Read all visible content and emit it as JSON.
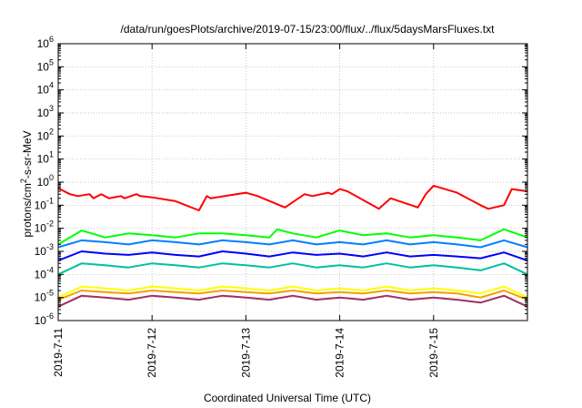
{
  "chart_data": {
    "type": "line",
    "title": "/data/run/goesPlots/archive/2019-07-15/23:00/flux/../flux/5daysMarsFluxes.txt",
    "xlabel": "Coordinated Universal Time (UTC)",
    "ylabel": "protons/cm2-s-sr-MeV",
    "yscale": "log",
    "xlim": [
      "2019-07-11T00:00",
      "2019-07-16T00:00"
    ],
    "ylim": [
      1e-06,
      1000000.0
    ],
    "x_ticks": [
      "2019-7-11",
      "2019-7-12",
      "2019-7-13",
      "2019-7-14",
      "2019-7-15"
    ],
    "y_ticks": [
      {
        "value": 1e-06,
        "base": "10",
        "exp": "-6"
      },
      {
        "value": 1e-05,
        "base": "10",
        "exp": "-5"
      },
      {
        "value": 0.0001,
        "base": "10",
        "exp": "-4"
      },
      {
        "value": 0.001,
        "base": "10",
        "exp": "-3"
      },
      {
        "value": 0.01,
        "base": "10",
        "exp": "-2"
      },
      {
        "value": 0.1,
        "base": "10",
        "exp": "-1"
      },
      {
        "value": 1.0,
        "base": "10",
        "exp": "0"
      },
      {
        "value": 10.0,
        "base": "10",
        "exp": "1"
      },
      {
        "value": 100.0,
        "base": "10",
        "exp": "2"
      },
      {
        "value": 1000.0,
        "base": "10",
        "exp": "3"
      },
      {
        "value": 10000.0,
        "base": "10",
        "exp": "4"
      },
      {
        "value": 100000.0,
        "base": "10",
        "exp": "5"
      },
      {
        "value": 1000000.0,
        "base": "10",
        "exp": "6"
      }
    ],
    "grid": true,
    "series": [
      {
        "color": "#ff0000",
        "x": [
          "2019-07-11T00:00",
          "2019-07-11T03:00",
          "2019-07-11T05:00",
          "2019-07-11T08:00",
          "2019-07-11T09:00",
          "2019-07-11T11:00",
          "2019-07-11T13:00",
          "2019-07-11T16:00",
          "2019-07-11T17:00",
          "2019-07-11T20:00",
          "2019-07-11T21:00",
          "2019-07-12T00:00",
          "2019-07-12T06:00",
          "2019-07-12T12:00",
          "2019-07-12T14:00",
          "2019-07-12T15:00",
          "2019-07-13T00:00",
          "2019-07-13T03:00",
          "2019-07-13T10:00",
          "2019-07-13T15:00",
          "2019-07-13T17:00",
          "2019-07-13T21:00",
          "2019-07-13T22:00",
          "2019-07-14T00:00",
          "2019-07-14T02:00",
          "2019-07-14T10:00",
          "2019-07-14T13:00",
          "2019-07-14T20:00",
          "2019-07-14T22:00",
          "2019-07-15T00:00",
          "2019-07-15T06:00",
          "2019-07-15T12:00",
          "2019-07-15T14:00",
          "2019-07-15T18:00",
          "2019-07-15T20:00",
          "2019-07-16T00:00"
        ],
        "values": [
          0.55,
          0.3,
          0.25,
          0.3,
          0.2,
          0.3,
          0.2,
          0.25,
          0.2,
          0.3,
          0.25,
          0.22,
          0.15,
          0.06,
          0.25,
          0.2,
          0.35,
          0.25,
          0.08,
          0.3,
          0.25,
          0.35,
          0.3,
          0.5,
          0.4,
          0.07,
          0.2,
          0.08,
          0.3,
          0.7,
          0.35,
          0.1,
          0.07,
          0.1,
          0.5,
          0.4
        ]
      },
      {
        "color": "#00ff00",
        "x": [
          "2019-07-11T00:00",
          "2019-07-11T06:00",
          "2019-07-11T12:00",
          "2019-07-11T18:00",
          "2019-07-12T00:00",
          "2019-07-12T06:00",
          "2019-07-12T12:00",
          "2019-07-12T18:00",
          "2019-07-13T00:00",
          "2019-07-13T06:00",
          "2019-07-13T08:00",
          "2019-07-13T12:00",
          "2019-07-13T18:00",
          "2019-07-14T00:00",
          "2019-07-14T06:00",
          "2019-07-14T12:00",
          "2019-07-14T18:00",
          "2019-07-15T00:00",
          "2019-07-15T06:00",
          "2019-07-15T12:00",
          "2019-07-15T18:00",
          "2019-07-16T00:00"
        ],
        "values": [
          0.002,
          0.008,
          0.004,
          0.006,
          0.005,
          0.004,
          0.006,
          0.006,
          0.005,
          0.004,
          0.009,
          0.006,
          0.004,
          0.008,
          0.005,
          0.006,
          0.004,
          0.005,
          0.004,
          0.003,
          0.009,
          0.004
        ]
      },
      {
        "color": "#0080ff",
        "x": [
          "2019-07-11T00:00",
          "2019-07-11T06:00",
          "2019-07-11T12:00",
          "2019-07-11T18:00",
          "2019-07-12T00:00",
          "2019-07-12T06:00",
          "2019-07-12T12:00",
          "2019-07-12T18:00",
          "2019-07-13T00:00",
          "2019-07-13T06:00",
          "2019-07-13T12:00",
          "2019-07-13T18:00",
          "2019-07-14T00:00",
          "2019-07-14T06:00",
          "2019-07-14T12:00",
          "2019-07-14T18:00",
          "2019-07-15T00:00",
          "2019-07-15T06:00",
          "2019-07-15T12:00",
          "2019-07-15T18:00",
          "2019-07-16T00:00"
        ],
        "values": [
          0.0015,
          0.003,
          0.0025,
          0.002,
          0.003,
          0.0025,
          0.002,
          0.003,
          0.0025,
          0.002,
          0.003,
          0.002,
          0.0025,
          0.002,
          0.003,
          0.002,
          0.0025,
          0.002,
          0.0015,
          0.003,
          0.0015
        ]
      },
      {
        "color": "#0000ff",
        "x": [
          "2019-07-11T00:00",
          "2019-07-11T06:00",
          "2019-07-11T12:00",
          "2019-07-11T18:00",
          "2019-07-12T00:00",
          "2019-07-12T06:00",
          "2019-07-12T12:00",
          "2019-07-12T18:00",
          "2019-07-13T00:00",
          "2019-07-13T06:00",
          "2019-07-13T12:00",
          "2019-07-13T18:00",
          "2019-07-14T00:00",
          "2019-07-14T06:00",
          "2019-07-14T12:00",
          "2019-07-14T18:00",
          "2019-07-15T00:00",
          "2019-07-15T06:00",
          "2019-07-15T12:00",
          "2019-07-15T18:00",
          "2019-07-16T00:00"
        ],
        "values": [
          0.0004,
          0.001,
          0.0008,
          0.0007,
          0.0009,
          0.0007,
          0.0006,
          0.001,
          0.0008,
          0.0006,
          0.0009,
          0.0007,
          0.0008,
          0.0006,
          0.0009,
          0.0006,
          0.0007,
          0.0006,
          0.0005,
          0.0009,
          0.0004
        ]
      },
      {
        "color": "#00c0a0",
        "x": [
          "2019-07-11T00:00",
          "2019-07-11T06:00",
          "2019-07-11T12:00",
          "2019-07-11T18:00",
          "2019-07-12T00:00",
          "2019-07-12T06:00",
          "2019-07-12T12:00",
          "2019-07-12T18:00",
          "2019-07-13T00:00",
          "2019-07-13T06:00",
          "2019-07-13T12:00",
          "2019-07-13T18:00",
          "2019-07-14T00:00",
          "2019-07-14T06:00",
          "2019-07-14T12:00",
          "2019-07-14T18:00",
          "2019-07-15T00:00",
          "2019-07-15T06:00",
          "2019-07-15T12:00",
          "2019-07-15T18:00",
          "2019-07-16T00:00"
        ],
        "values": [
          0.0001,
          0.0003,
          0.00025,
          0.0002,
          0.0003,
          0.00025,
          0.0002,
          0.0003,
          0.00025,
          0.0002,
          0.0003,
          0.0002,
          0.00025,
          0.0002,
          0.0003,
          0.0002,
          0.00025,
          0.0002,
          0.00015,
          0.0003,
          0.0001
        ]
      },
      {
        "color": "#ffff00",
        "x": [
          "2019-07-11T00:00",
          "2019-07-11T06:00",
          "2019-07-11T12:00",
          "2019-07-11T18:00",
          "2019-07-12T00:00",
          "2019-07-12T06:00",
          "2019-07-12T12:00",
          "2019-07-12T18:00",
          "2019-07-13T00:00",
          "2019-07-13T06:00",
          "2019-07-13T12:00",
          "2019-07-13T18:00",
          "2019-07-14T00:00",
          "2019-07-14T06:00",
          "2019-07-14T12:00",
          "2019-07-14T18:00",
          "2019-07-15T00:00",
          "2019-07-15T06:00",
          "2019-07-15T12:00",
          "2019-07-15T18:00",
          "2019-07-16T00:00"
        ],
        "values": [
          1e-05,
          3e-05,
          2.5e-05,
          2e-05,
          3e-05,
          2.5e-05,
          2e-05,
          3e-05,
          2.5e-05,
          2e-05,
          3e-05,
          2e-05,
          2.5e-05,
          2e-05,
          3e-05,
          2e-05,
          2.5e-05,
          2e-05,
          1.5e-05,
          3e-05,
          1e-05
        ]
      },
      {
        "color": "#f0a000",
        "x": [
          "2019-07-11T00:00",
          "2019-07-11T06:00",
          "2019-07-11T12:00",
          "2019-07-11T18:00",
          "2019-07-12T00:00",
          "2019-07-12T06:00",
          "2019-07-12T12:00",
          "2019-07-12T18:00",
          "2019-07-13T00:00",
          "2019-07-13T06:00",
          "2019-07-13T12:00",
          "2019-07-13T18:00",
          "2019-07-14T00:00",
          "2019-07-14T06:00",
          "2019-07-14T12:00",
          "2019-07-14T18:00",
          "2019-07-15T00:00",
          "2019-07-15T06:00",
          "2019-07-15T12:00",
          "2019-07-15T18:00",
          "2019-07-16T00:00"
        ],
        "values": [
          8e-06,
          2e-05,
          1.7e-05,
          1.5e-05,
          2e-05,
          1.7e-05,
          1.5e-05,
          2e-05,
          1.7e-05,
          1.5e-05,
          2e-05,
          1.5e-05,
          1.7e-05,
          1.5e-05,
          2e-05,
          1.5e-05,
          1.7e-05,
          1.5e-05,
          1e-05,
          2e-05,
          8e-06
        ]
      },
      {
        "color": "#a03060",
        "x": [
          "2019-07-11T00:00",
          "2019-07-11T06:00",
          "2019-07-11T12:00",
          "2019-07-11T18:00",
          "2019-07-12T00:00",
          "2019-07-12T06:00",
          "2019-07-12T12:00",
          "2019-07-12T18:00",
          "2019-07-13T00:00",
          "2019-07-13T06:00",
          "2019-07-13T12:00",
          "2019-07-13T18:00",
          "2019-07-14T00:00",
          "2019-07-14T06:00",
          "2019-07-14T12:00",
          "2019-07-14T18:00",
          "2019-07-15T00:00",
          "2019-07-15T06:00",
          "2019-07-15T12:00",
          "2019-07-15T18:00",
          "2019-07-16T00:00"
        ],
        "values": [
          4e-06,
          1.2e-05,
          1e-05,
          8e-06,
          1.2e-05,
          1e-05,
          8e-06,
          1.2e-05,
          1e-05,
          8e-06,
          1.2e-05,
          8e-06,
          1e-05,
          8e-06,
          1.2e-05,
          8e-06,
          1e-05,
          8e-06,
          6e-06,
          1.2e-05,
          4e-06
        ]
      }
    ]
  }
}
